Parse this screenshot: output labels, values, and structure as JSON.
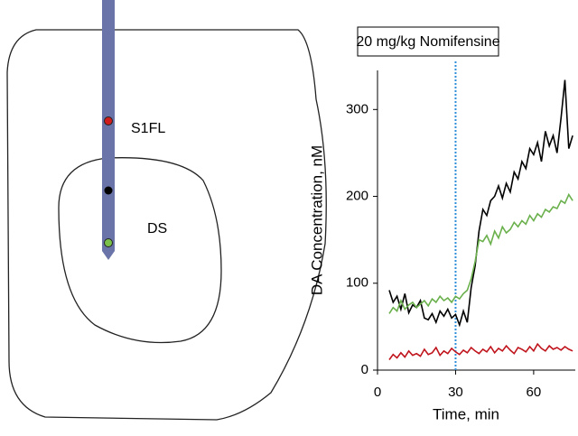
{
  "diagram": {
    "labels": [
      "S1FL",
      "DS"
    ]
  },
  "chart_data": {
    "type": "line",
    "title": "20 mg/kg Nomifensine",
    "xlabel": "Time, min",
    "ylabel": "DA Concentration, nM",
    "x": [
      4.5,
      6,
      7.5,
      9,
      10.5,
      12,
      13.5,
      15,
      16.5,
      18,
      19.5,
      21,
      22.5,
      24,
      25.5,
      27,
      28.5,
      30,
      31.5,
      33,
      34.5,
      36,
      37.5,
      39,
      40.5,
      42,
      43.5,
      45,
      46.5,
      48,
      49.5,
      51,
      52.5,
      54,
      55.5,
      57,
      58.5,
      60,
      61.5,
      63,
      64.5,
      66,
      67.5,
      69,
      70.5,
      72,
      73.5,
      75
    ],
    "series": [
      {
        "color": "#000000",
        "values": [
          92,
          78,
          85,
          70,
          88,
          66,
          75,
          72,
          80,
          60,
          58,
          65,
          55,
          68,
          62,
          70,
          60,
          64,
          52,
          68,
          55,
          95,
          120,
          160,
          185,
          178,
          195,
          200,
          212,
          198,
          215,
          205,
          228,
          220,
          240,
          232,
          255,
          248,
          262,
          240,
          275,
          258,
          270,
          250,
          290,
          334,
          255,
          270
        ]
      },
      {
        "color": "#6ab04c",
        "values": [
          65,
          72,
          68,
          80,
          70,
          75,
          78,
          72,
          76,
          80,
          74,
          82,
          78,
          85,
          80,
          83,
          78,
          85,
          82,
          88,
          92,
          105,
          125,
          150,
          148,
          155,
          145,
          160,
          152,
          165,
          158,
          162,
          170,
          165,
          172,
          168,
          178,
          172,
          180,
          176,
          185,
          182,
          188,
          186,
          195,
          192,
          202,
          195
        ]
      },
      {
        "color": "#c0141c",
        "values": [
          12,
          18,
          14,
          20,
          15,
          22,
          17,
          19,
          16,
          24,
          18,
          20,
          26,
          17,
          22,
          19,
          25,
          21,
          18,
          23,
          20,
          26,
          22,
          19,
          24,
          21,
          27,
          20,
          25,
          22,
          28,
          23,
          19,
          26,
          24,
          21,
          27,
          22,
          30,
          25,
          22,
          28,
          24,
          26,
          23,
          27,
          24,
          22
        ]
      }
    ],
    "vline": 30,
    "vline_color": "#2f8fd8",
    "xlim": [
      0,
      76
    ],
    "xticks": [
      0,
      30,
      60
    ],
    "ylim": [
      0,
      345
    ],
    "yticks": [
      0,
      100,
      200,
      300
    ]
  }
}
